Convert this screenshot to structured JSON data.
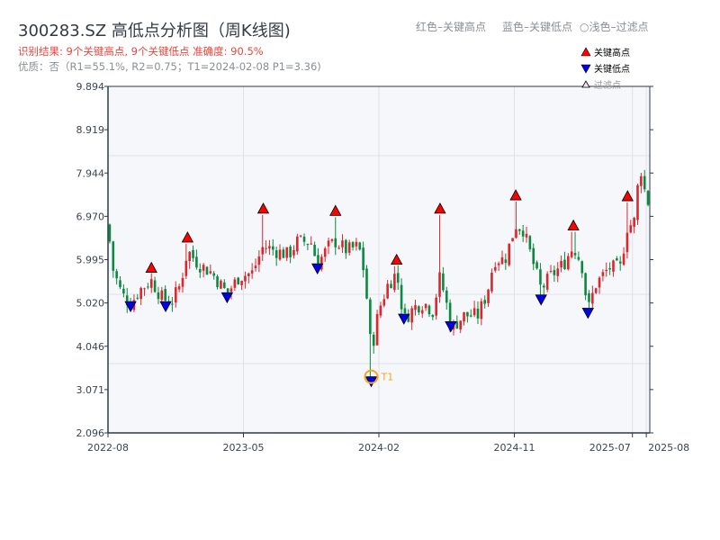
{
  "header": {
    "title": "300283.SZ 高低点分析图（周K线图)",
    "result": "识别结果: 9个关键高点, 9个关键低点  准确度: 90.5%",
    "quality": "优质：否（R1=55.1%, R2=0.75；T1=2024-02-08 P1=3.36)",
    "hint_red": "红色–关键高点",
    "hint_blue": "蓝色–关键低点",
    "hint_light": "○浅色–过滤点"
  },
  "colors": {
    "up": "#e0242b",
    "down": "#0a8a3f",
    "high": "#ff0000",
    "low": "#0000ee",
    "t1": "#f5a623",
    "axis": "#2b3a4a",
    "plot_bg": "#f5f7fa"
  },
  "chart_data": {
    "type": "candlestick",
    "title": "300283.SZ 高低点分析图（周K线图)",
    "x_unit": "weeks since 2022-08",
    "xlim": [
      0,
      156
    ],
    "ylim": [
      2.096,
      9.894
    ],
    "yticks": [
      "9.894",
      "8.919",
      "7.944",
      "6.970",
      "5.995",
      "5.020",
      "4.046",
      "3.071",
      "2.096"
    ],
    "xticks": [
      {
        "week": 0,
        "label": "2022-08"
      },
      {
        "week": 39,
        "label": "2023-05"
      },
      {
        "week": 78,
        "label": "2024-02"
      },
      {
        "week": 117,
        "label": "2024-11"
      },
      {
        "week": 151,
        "label": "2025-07"
      },
      {
        "week": 155,
        "label": "2025-08"
      }
    ],
    "close_path": [
      [
        0,
        6.78
      ],
      [
        1.3,
        5.81
      ],
      [
        3.9,
        5.23
      ],
      [
        6.5,
        4.99
      ],
      [
        9.1,
        5.32
      ],
      [
        12.5,
        5.52
      ],
      [
        15.6,
        5.13
      ],
      [
        18.2,
        5.03
      ],
      [
        20.8,
        5.42
      ],
      [
        22.9,
        6.2
      ],
      [
        26,
        5.9
      ],
      [
        29.9,
        5.7
      ],
      [
        34.3,
        5.23
      ],
      [
        37.7,
        5.61
      ],
      [
        41.6,
        5.7
      ],
      [
        44.7,
        6.3
      ],
      [
        48.1,
        6.2
      ],
      [
        52,
        6.1
      ],
      [
        54.5,
        6.4
      ],
      [
        58.4,
        6.4
      ],
      [
        60.3,
        5.9
      ],
      [
        63.6,
        6.3
      ],
      [
        65.5,
        6.4
      ],
      [
        68.8,
        6.2
      ],
      [
        72.2,
        6.3
      ],
      [
        74,
        5.61
      ],
      [
        75.8,
        3.9
      ],
      [
        77.9,
        4.84
      ],
      [
        80.5,
        5.42
      ],
      [
        83.1,
        5.7
      ],
      [
        85.2,
        4.64
      ],
      [
        88.3,
        4.93
      ],
      [
        90.9,
        5.03
      ],
      [
        93.5,
        4.84
      ],
      [
        95.6,
        5.61
      ],
      [
        97.4,
        5.03
      ],
      [
        98.7,
        4.45
      ],
      [
        102.6,
        4.74
      ],
      [
        106.5,
        4.74
      ],
      [
        109.1,
        5.23
      ],
      [
        111.2,
        6.0
      ],
      [
        114.3,
        6.0
      ],
      [
        117.4,
        6.78
      ],
      [
        119.5,
        6.68
      ],
      [
        122.1,
        6.0
      ],
      [
        124.7,
        5.32
      ],
      [
        127.3,
        5.61
      ],
      [
        131.2,
        5.9
      ],
      [
        134,
        6.3
      ],
      [
        136.4,
        5.9
      ],
      [
        138.2,
        4.84
      ],
      [
        140.3,
        5.42
      ],
      [
        144.2,
        5.81
      ],
      [
        147.5,
        5.81
      ],
      [
        149.6,
        6.78
      ],
      [
        151.4,
        6.78
      ],
      [
        153.2,
        8.14
      ],
      [
        154.5,
        7.56
      ],
      [
        156,
        7.17
      ]
    ],
    "key_highs": [
      [
        12.5,
        5.67
      ],
      [
        22.9,
        6.35
      ],
      [
        44.7,
        7.0
      ],
      [
        65.5,
        6.95
      ],
      [
        83.1,
        5.85
      ],
      [
        95.6,
        7.0
      ],
      [
        117.4,
        7.3
      ],
      [
        134,
        6.62
      ],
      [
        149.6,
        7.28
      ]
    ],
    "key_lows": [
      [
        6.5,
        5.05
      ],
      [
        16.6,
        5.05
      ],
      [
        34.3,
        5.25
      ],
      [
        60.3,
        5.9
      ],
      [
        75.8,
        3.36
      ],
      [
        85.2,
        4.77
      ],
      [
        98.7,
        4.6
      ],
      [
        124.7,
        5.2
      ],
      [
        138.2,
        4.9
      ]
    ],
    "annotation": {
      "label": "T1",
      "week": 75.8,
      "price": 3.36
    },
    "legend": {
      "position": "top-right",
      "entries": [
        "关键高点",
        "关键低点",
        "过滤点"
      ]
    }
  }
}
